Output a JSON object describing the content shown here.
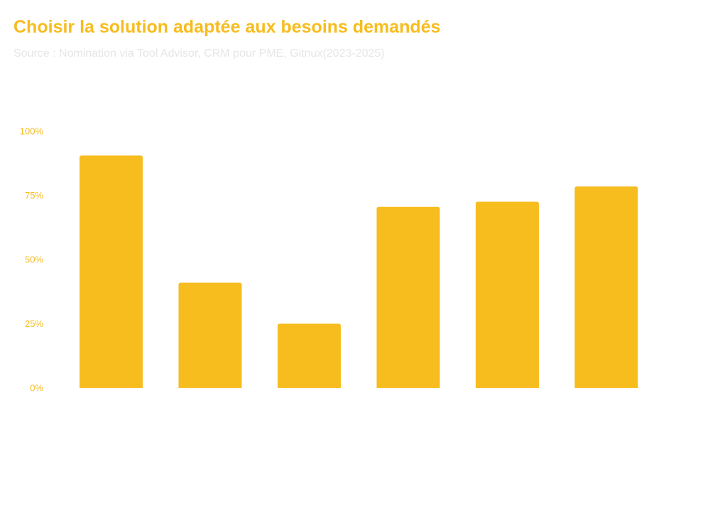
{
  "header": {
    "title": "Choisir la solution adaptée aux besoins demandés",
    "subtitle": "Source : Nomination via Tool Advisor, CRM pour PME, Gitnux(2023-2025)"
  },
  "colors": {
    "bar": "#F7BC1E",
    "title": "#F7BC1E",
    "subtitle": "#E6E6E6",
    "tick": "#F7BC1E"
  },
  "chart_data": {
    "type": "bar",
    "title": "Choisir la solution adaptée aux besoins demandés",
    "subtitle": "Source : Nomination via Tool Advisor, CRM pour PME, Gitnux(2023-2025)",
    "categories": [
      "",
      "",
      "",
      "",
      "",
      ""
    ],
    "values": [
      90.5,
      41,
      25,
      70.5,
      72.5,
      78.5
    ],
    "ylim": [
      0,
      100
    ],
    "yticks": [
      0,
      25,
      50,
      75,
      100
    ],
    "ytick_labels": [
      "0%",
      "25%",
      "50%",
      "75%",
      "100%"
    ],
    "xlabel": "",
    "ylabel": "",
    "grid": false,
    "legend": "none"
  }
}
